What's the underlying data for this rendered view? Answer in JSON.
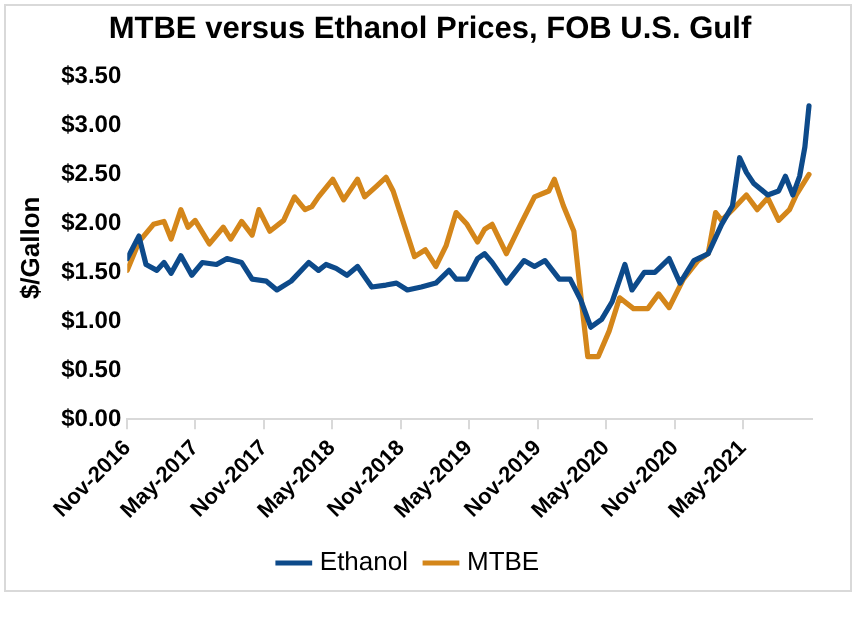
{
  "chart_data": {
    "type": "line",
    "title": "MTBE versus Ethanol Prices, FOB U.S. Gulf",
    "ylabel": "$/Gallon",
    "xlim": [
      "2016-11-01",
      "2021-11-01"
    ],
    "xticks": [
      {
        "value": "2016-11-01",
        "label": "Nov-2016"
      },
      {
        "value": "2017-05-01",
        "label": "May-2017"
      },
      {
        "value": "2017-11-01",
        "label": "Nov-2017"
      },
      {
        "value": "2018-05-01",
        "label": "May-2018"
      },
      {
        "value": "2018-11-01",
        "label": "Nov-2018"
      },
      {
        "value": "2019-05-01",
        "label": "May-2019"
      },
      {
        "value": "2019-11-01",
        "label": "Nov-2019"
      },
      {
        "value": "2020-05-01",
        "label": "May-2020"
      },
      {
        "value": "2020-11-01",
        "label": "Nov-2020"
      },
      {
        "value": "2021-05-01",
        "label": "May-2021"
      }
    ],
    "ylim": [
      0,
      3.5
    ],
    "yticks": [
      {
        "value": 0,
        "label": "$0.00"
      },
      {
        "value": 0.5,
        "label": "$0.50"
      },
      {
        "value": 1,
        "label": "$1.00"
      },
      {
        "value": 1.5,
        "label": "$1.50"
      },
      {
        "value": 2,
        "label": "$2.00"
      },
      {
        "value": 2.5,
        "label": "$2.50"
      },
      {
        "value": 3,
        "label": "$3.00"
      },
      {
        "value": 3.5,
        "label": "$3.50"
      }
    ],
    "grid": false,
    "legend": "bottom",
    "marker": "none",
    "line_style": "solid",
    "series": [
      {
        "name": "Ethanol",
        "color": "#0d4a8a",
        "x": [
          "2016-11-01",
          "2016-12-02",
          "2016-12-21",
          "2017-01-19",
          "2017-02-07",
          "2017-02-26",
          "2017-03-24",
          "2017-04-22",
          "2017-05-20",
          "2017-06-27",
          "2017-07-25",
          "2017-09-02",
          "2017-09-30",
          "2017-11-07",
          "2017-12-05",
          "2018-01-12",
          "2018-02-28",
          "2018-03-26",
          "2018-04-15",
          "2018-05-12",
          "2018-06-10",
          "2018-07-08",
          "2018-08-15",
          "2018-09-22",
          "2018-10-20",
          "2018-11-18",
          "2018-12-25",
          "2019-02-02",
          "2019-03-09",
          "2019-03-28",
          "2019-04-26",
          "2019-05-24",
          "2019-06-12",
          "2019-07-02",
          "2019-08-09",
          "2019-09-25",
          "2019-10-23",
          "2019-11-20",
          "2019-12-28",
          "2020-01-26",
          "2020-02-23",
          "2020-03-21",
          "2020-04-19",
          "2020-05-17",
          "2020-06-20",
          "2020-07-09",
          "2020-08-11",
          "2020-09-08",
          "2020-10-16",
          "2020-11-14",
          "2020-12-21",
          "2021-01-28",
          "2021-03-05",
          "2021-04-03",
          "2021-04-22",
          "2021-05-10",
          "2021-05-29",
          "2021-07-06",
          "2021-08-04",
          "2021-08-22",
          "2021-09-11",
          "2021-09-29",
          "2021-10-13",
          "2021-10-24"
        ],
        "values": [
          1.64,
          1.87,
          1.58,
          1.52,
          1.6,
          1.49,
          1.67,
          1.47,
          1.6,
          1.58,
          1.64,
          1.6,
          1.43,
          1.41,
          1.32,
          1.41,
          1.6,
          1.52,
          1.58,
          1.54,
          1.47,
          1.56,
          1.35,
          1.37,
          1.39,
          1.32,
          1.35,
          1.39,
          1.52,
          1.43,
          1.43,
          1.64,
          1.69,
          1.6,
          1.39,
          1.62,
          1.56,
          1.62,
          1.43,
          1.43,
          1.22,
          0.94,
          1.02,
          1.2,
          1.58,
          1.32,
          1.5,
          1.5,
          1.64,
          1.39,
          1.62,
          1.69,
          1.99,
          2.18,
          2.67,
          2.52,
          2.41,
          2.29,
          2.33,
          2.48,
          2.29,
          2.48,
          2.78,
          3.2
        ]
      },
      {
        "name": "MTBE",
        "color": "#d4861a",
        "x": [
          "2016-11-01",
          "2016-12-02",
          "2017-01-10",
          "2017-02-07",
          "2017-02-26",
          "2017-03-24",
          "2017-04-12",
          "2017-05-01",
          "2017-06-08",
          "2017-07-15",
          "2017-08-04",
          "2017-09-02",
          "2017-09-30",
          "2017-10-18",
          "2017-11-16",
          "2017-12-23",
          "2018-01-21",
          "2018-02-18",
          "2018-03-08",
          "2018-03-26",
          "2018-05-03",
          "2018-06-01",
          "2018-07-08",
          "2018-07-27",
          "2018-08-25",
          "2018-09-22",
          "2018-10-11",
          "2018-11-09",
          "2018-12-07",
          "2019-01-05",
          "2019-02-02",
          "2019-03-01",
          "2019-03-28",
          "2019-04-26",
          "2019-05-24",
          "2019-06-12",
          "2019-07-02",
          "2019-08-09",
          "2019-09-16",
          "2019-10-23",
          "2019-11-30",
          "2019-12-15",
          "2020-01-08",
          "2020-02-05",
          "2020-02-23",
          "2020-03-13",
          "2020-04-10",
          "2020-05-09",
          "2020-06-06",
          "2020-07-13",
          "2020-08-20",
          "2020-09-18",
          "2020-10-16",
          "2020-11-23",
          "2021-01-01",
          "2021-01-28",
          "2021-02-17",
          "2021-03-05",
          "2021-04-03",
          "2021-05-10",
          "2021-06-08",
          "2021-07-06",
          "2021-08-04",
          "2021-09-02",
          "2021-09-20",
          "2021-10-24"
        ],
        "values": [
          1.52,
          1.81,
          1.99,
          2.02,
          1.84,
          2.14,
          1.96,
          2.03,
          1.79,
          1.96,
          1.84,
          2.02,
          1.88,
          2.14,
          1.92,
          2.03,
          2.27,
          2.14,
          2.17,
          2.27,
          2.45,
          2.24,
          2.45,
          2.27,
          2.37,
          2.47,
          2.33,
          1.99,
          1.66,
          1.73,
          1.56,
          1.77,
          2.11,
          1.99,
          1.81,
          1.94,
          1.99,
          1.69,
          1.99,
          2.27,
          2.33,
          2.45,
          2.18,
          1.92,
          1.28,
          0.64,
          0.64,
          0.9,
          1.24,
          1.13,
          1.13,
          1.28,
          1.14,
          1.43,
          1.62,
          1.69,
          2.11,
          2.03,
          2.14,
          2.29,
          2.14,
          2.26,
          2.03,
          2.14,
          2.29,
          2.5
        ]
      }
    ]
  }
}
